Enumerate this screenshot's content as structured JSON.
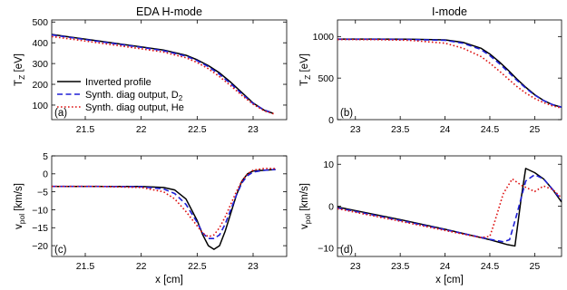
{
  "chart_data": [
    {
      "type": "line",
      "panel_label": "(a)",
      "title": "EDA H-mode",
      "xlabel": "",
      "ylabel": "T",
      "ylabel_sub": "Z",
      "ylabel_unit": " [eV]",
      "xlim": [
        21.2,
        23.3
      ],
      "ylim": [
        30,
        510
      ],
      "xticks": [
        21.5,
        22,
        22.5,
        23
      ],
      "yticks": [
        100,
        200,
        300,
        400,
        500
      ],
      "legend": {
        "placement": "center-left",
        "entries": [
          {
            "series": 0,
            "text": "Inverted profile",
            "sub": ""
          },
          {
            "series": 1,
            "text": "Synth. diag output, D",
            "sub": "2"
          },
          {
            "series": 2,
            "text": "Synth. diag output, He",
            "sub": ""
          }
        ]
      },
      "series": [
        {
          "name": "Inverted profile",
          "color": "#000000",
          "dash": "solid",
          "x": [
            21.2,
            21.4,
            21.6,
            21.8,
            22.0,
            22.2,
            22.4,
            22.5,
            22.6,
            22.7,
            22.8,
            22.9,
            23.0,
            23.1,
            23.18
          ],
          "y": [
            440,
            425,
            410,
            395,
            380,
            365,
            340,
            318,
            290,
            255,
            210,
            160,
            110,
            75,
            60
          ]
        },
        {
          "name": "Synth. diag output, D2",
          "color": "#1f1fd6",
          "dash": "dashed",
          "x": [
            21.2,
            21.4,
            21.6,
            21.8,
            22.0,
            22.2,
            22.4,
            22.5,
            22.6,
            22.7,
            22.8,
            22.9,
            23.0,
            23.1,
            23.18
          ],
          "y": [
            438,
            423,
            408,
            393,
            378,
            362,
            336,
            314,
            285,
            248,
            203,
            154,
            108,
            76,
            62
          ]
        },
        {
          "name": "Synth. diag output, He",
          "color": "#dd1111",
          "dash": "dotted",
          "x": [
            21.2,
            21.4,
            21.6,
            21.8,
            22.0,
            22.2,
            22.4,
            22.5,
            22.6,
            22.7,
            22.8,
            22.9,
            23.0,
            23.1,
            23.2
          ],
          "y": [
            430,
            416,
            401,
            386,
            371,
            355,
            328,
            305,
            275,
            237,
            193,
            147,
            104,
            72,
            55
          ]
        }
      ]
    },
    {
      "type": "line",
      "panel_label": "(b)",
      "title": "I-mode",
      "xlabel": "",
      "ylabel": "T",
      "ylabel_sub": "Z",
      "ylabel_unit": " [eV]",
      "xlim": [
        22.8,
        25.3
      ],
      "ylim": [
        0,
        1200
      ],
      "xticks": [
        23,
        23.5,
        24,
        24.5,
        25
      ],
      "yticks": [
        0,
        500,
        1000
      ],
      "series": [
        {
          "name": "Inverted profile",
          "color": "#000000",
          "dash": "solid",
          "x": [
            22.8,
            23.2,
            23.6,
            24.0,
            24.2,
            24.4,
            24.5,
            24.6,
            24.7,
            24.8,
            24.9,
            25.0,
            25.1,
            25.2,
            25.3
          ],
          "y": [
            970,
            970,
            968,
            960,
            930,
            860,
            790,
            700,
            600,
            490,
            390,
            300,
            230,
            180,
            150
          ]
        },
        {
          "name": "Synth. diag output, D2",
          "color": "#1f1fd6",
          "dash": "dashed",
          "x": [
            22.8,
            23.2,
            23.6,
            24.0,
            24.2,
            24.4,
            24.5,
            24.6,
            24.7,
            24.8,
            24.9,
            25.0,
            25.1,
            25.2,
            25.3
          ],
          "y": [
            968,
            968,
            965,
            955,
            920,
            845,
            770,
            680,
            580,
            475,
            380,
            295,
            230,
            180,
            150
          ]
        },
        {
          "name": "Synth. diag output, He",
          "color": "#dd1111",
          "dash": "dotted",
          "x": [
            22.8,
            23.2,
            23.6,
            24.0,
            24.2,
            24.4,
            24.5,
            24.6,
            24.7,
            24.8,
            24.9,
            25.0,
            25.1,
            25.2,
            25.3
          ],
          "y": [
            965,
            963,
            955,
            920,
            860,
            760,
            680,
            590,
            495,
            400,
            320,
            255,
            205,
            165,
            140
          ]
        }
      ]
    },
    {
      "type": "line",
      "panel_label": "(c)",
      "title": "",
      "xlabel": "x [cm]",
      "ylabel": "v",
      "ylabel_sub": "pol",
      "ylabel_unit": " [km/s]",
      "xlim": [
        21.2,
        23.3
      ],
      "ylim": [
        -23,
        5
      ],
      "xticks": [
        21.5,
        22,
        22.5,
        23
      ],
      "yticks": [
        -20,
        -15,
        -10,
        -5,
        0,
        5
      ],
      "series": [
        {
          "name": "Inverted profile",
          "color": "#000000",
          "dash": "solid",
          "x": [
            21.2,
            21.6,
            22.0,
            22.2,
            22.3,
            22.4,
            22.5,
            22.55,
            22.6,
            22.65,
            22.7,
            22.75,
            22.8,
            22.85,
            22.9,
            22.95,
            23.0,
            23.1,
            23.2
          ],
          "y": [
            -3.5,
            -3.5,
            -3.5,
            -3.8,
            -4.5,
            -7,
            -13,
            -17,
            -20,
            -21,
            -20,
            -16,
            -11,
            -6,
            -2,
            0,
            0.8,
            1,
            1.2
          ]
        },
        {
          "name": "Synth. diag output, D2",
          "color": "#1f1fd6",
          "dash": "dashed",
          "x": [
            21.2,
            21.6,
            22.0,
            22.2,
            22.3,
            22.4,
            22.5,
            22.55,
            22.6,
            22.65,
            22.7,
            22.75,
            22.8,
            22.85,
            22.9,
            22.95,
            23.0,
            23.1,
            23.2
          ],
          "y": [
            -3.5,
            -3.5,
            -3.6,
            -4.2,
            -5.5,
            -8.5,
            -13.5,
            -16.5,
            -18,
            -18,
            -17,
            -14,
            -10,
            -6,
            -2.5,
            -0.5,
            0.5,
            1,
            1.2
          ]
        },
        {
          "name": "Synth. diag output, He",
          "color": "#dd1111",
          "dash": "dotted",
          "x": [
            21.2,
            21.6,
            22.0,
            22.2,
            22.3,
            22.4,
            22.5,
            22.55,
            22.6,
            22.65,
            22.7,
            22.75,
            22.8,
            22.85,
            22.9,
            22.95,
            23.0,
            23.1,
            23.2
          ],
          "y": [
            -3.5,
            -3.5,
            -3.8,
            -5,
            -7,
            -10.5,
            -14.5,
            -16.5,
            -17.5,
            -17,
            -15,
            -12,
            -8.5,
            -5,
            -2,
            0,
            1,
            1.5,
            1.5
          ]
        }
      ]
    },
    {
      "type": "line",
      "panel_label": "(d)",
      "title": "",
      "xlabel": "x [cm]",
      "ylabel": "v",
      "ylabel_sub": "pol",
      "ylabel_unit": " [km/s]",
      "xlim": [
        22.8,
        25.3
      ],
      "ylim": [
        -12,
        12
      ],
      "xticks": [
        23,
        23.5,
        24,
        24.5,
        25
      ],
      "yticks": [
        -10,
        0,
        10
      ],
      "series": [
        {
          "name": "Inverted profile",
          "color": "#000000",
          "dash": "solid",
          "x": [
            22.8,
            23.5,
            24.0,
            24.5,
            24.7,
            24.78,
            24.85,
            24.9,
            25.0,
            25.1,
            25.2,
            25.3
          ],
          "y": [
            -0.2,
            -3.2,
            -5.5,
            -8,
            -9.2,
            -9.5,
            2,
            9,
            8,
            6.5,
            4,
            1
          ]
        },
        {
          "name": "Synth. diag output, D2",
          "color": "#1f1fd6",
          "dash": "dashed",
          "x": [
            22.8,
            23.5,
            24.0,
            24.5,
            24.65,
            24.72,
            24.8,
            24.9,
            25.0,
            25.1,
            25.2,
            25.3
          ],
          "y": [
            -0.4,
            -3.4,
            -5.6,
            -7.9,
            -8.5,
            -8,
            -2,
            6,
            7.5,
            6.5,
            4,
            1.5
          ]
        },
        {
          "name": "Synth. diag output, He",
          "color": "#dd1111",
          "dash": "dotted",
          "x": [
            22.8,
            23.5,
            24.0,
            24.4,
            24.5,
            24.55,
            24.65,
            24.75,
            24.85,
            25.0,
            25.1,
            25.2,
            25.3
          ],
          "y": [
            -0.6,
            -3.6,
            -5.8,
            -7.5,
            -7.2,
            -4,
            3,
            6.5,
            5,
            3.5,
            4.8,
            4,
            2
          ]
        }
      ]
    }
  ]
}
